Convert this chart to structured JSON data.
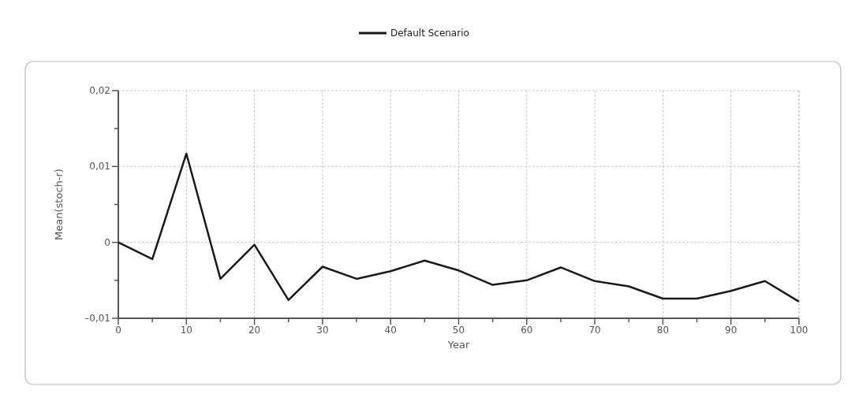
{
  "chart_data": {
    "type": "line",
    "xlabel": "Year",
    "ylabel": "Mean(stoch-r)",
    "legend": "top",
    "grid": true,
    "line_style": "solid",
    "marker": "none",
    "xlim": [
      0,
      100
    ],
    "ylim": [
      -0.01,
      0.02
    ],
    "xticks": [
      0,
      {
        "value": 5,
        "label": null
      },
      10,
      {
        "value": 15,
        "label": null
      },
      20,
      {
        "value": 25,
        "label": null
      },
      30,
      {
        "value": 35,
        "label": null
      },
      40,
      {
        "value": 45,
        "label": null
      },
      50,
      {
        "value": 55,
        "label": null
      },
      60,
      {
        "value": 65,
        "label": null
      },
      70,
      {
        "value": 75,
        "label": null
      },
      80,
      {
        "value": 85,
        "label": null
      },
      90,
      {
        "value": 95,
        "label": null
      },
      100
    ],
    "yticks": [
      {
        "value": -0.01,
        "label": "–0,01"
      },
      {
        "value": -0.005,
        "label": null
      },
      0,
      {
        "value": 0.005,
        "label": null
      },
      {
        "value": 0.01,
        "label": "0,01"
      },
      {
        "value": 0.015,
        "label": null
      },
      {
        "value": 0.02,
        "label": "0,02"
      }
    ],
    "x": [
      0,
      5,
      10,
      15,
      20,
      25,
      30,
      35,
      40,
      45,
      50,
      55,
      60,
      65,
      70,
      75,
      80,
      85,
      90,
      95,
      100
    ],
    "series": [
      {
        "name": "Default Scenario",
        "color": "#1a1a1a",
        "values": [
          0,
          -0.0022,
          0.0117,
          -0.0048,
          -0.0003,
          -0.0076,
          -0.0032,
          -0.0048,
          -0.0038,
          -0.0024,
          -0.0037,
          -0.0056,
          -0.005,
          -0.0033,
          -0.0051,
          -0.0058,
          -0.0074,
          -0.0074,
          -0.0064,
          -0.0051,
          -0.0078
        ]
      }
    ]
  }
}
